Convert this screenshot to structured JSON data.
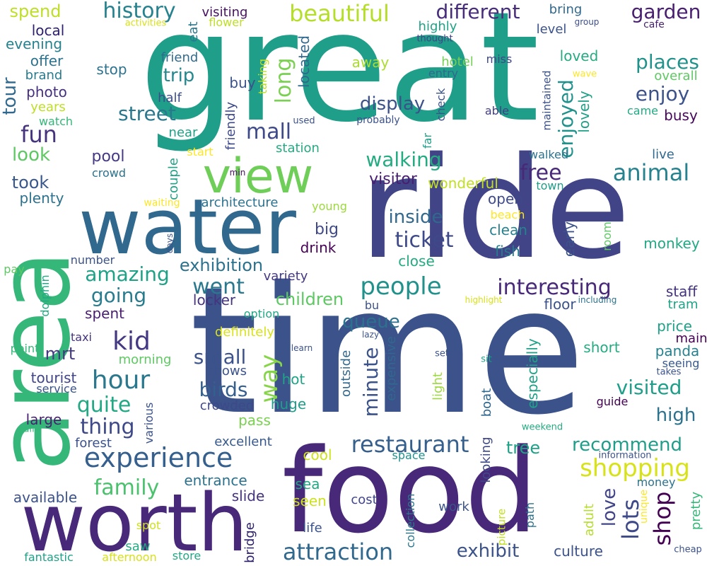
{
  "wordcloud": {
    "words": [
      {
        "text": "great",
        "color": "#1f9e89"
      },
      {
        "text": "time",
        "color": "#3b528b"
      },
      {
        "text": "ride",
        "color": "#414487"
      },
      {
        "text": "food",
        "color": "#482878"
      },
      {
        "text": "area",
        "color": "#35b779"
      },
      {
        "text": "water",
        "color": "#31688e"
      },
      {
        "text": "worth",
        "color": "#482878"
      },
      {
        "text": "view",
        "color": "#6ece58"
      },
      {
        "text": "beautiful",
        "color": "#b5de2b"
      },
      {
        "text": "history",
        "color": "#26828e"
      },
      {
        "text": "different",
        "color": "#472d7b"
      },
      {
        "text": "experience",
        "color": "#355f8d"
      },
      {
        "text": "restaurant",
        "color": "#355f8d"
      },
      {
        "text": "shopping",
        "color": "#d8e219"
      },
      {
        "text": "attraction",
        "color": "#31688e"
      },
      {
        "text": "interesting",
        "color": "#482878"
      },
      {
        "text": "people",
        "color": "#21918c"
      },
      {
        "text": "amazing",
        "color": "#1fa187"
      },
      {
        "text": "hour",
        "color": "#2a788e"
      },
      {
        "text": "ticket",
        "color": "#3e4989"
      },
      {
        "text": "children",
        "color": "#5ec962"
      },
      {
        "text": "exhibition",
        "color": "#2c728e"
      },
      {
        "text": "visited",
        "color": "#1f9e89"
      },
      {
        "text": "animal",
        "color": "#26828e"
      },
      {
        "text": "enjoyed",
        "color": "#21918c"
      },
      {
        "text": "shop",
        "color": "#440154"
      },
      {
        "text": "family",
        "color": "#4ac16d"
      },
      {
        "text": "exhibit",
        "color": "#3b528b"
      },
      {
        "text": "went",
        "color": "#2a788e"
      },
      {
        "text": "kid",
        "color": "#443983"
      },
      {
        "text": "quite",
        "color": "#22a884"
      },
      {
        "text": "thing",
        "color": "#3e4989"
      },
      {
        "text": "mall",
        "color": "#3e4989"
      },
      {
        "text": "fun",
        "color": "#46337e"
      },
      {
        "text": "street",
        "color": "#2a788e"
      },
      {
        "text": "walking",
        "color": "#25ab82"
      },
      {
        "text": "free",
        "color": "#482878"
      },
      {
        "text": "places",
        "color": "#21918c"
      },
      {
        "text": "garden",
        "color": "#481f70"
      },
      {
        "text": "enjoy",
        "color": "#3b528b"
      },
      {
        "text": "lots",
        "color": "#3e4989"
      },
      {
        "text": "long",
        "color": "#7ad151"
      },
      {
        "text": "way",
        "color": "#86d549"
      },
      {
        "text": "minute",
        "color": "#3b528b"
      },
      {
        "text": "recommend",
        "color": "#1f9e89"
      },
      {
        "text": "going",
        "color": "#287c8e"
      },
      {
        "text": "small",
        "color": "#3b528b"
      },
      {
        "text": "birds",
        "color": "#355f8d"
      },
      {
        "text": "queue",
        "color": "#2c728e"
      },
      {
        "text": "inside",
        "color": "#31688e"
      },
      {
        "text": "love",
        "color": "#414487"
      },
      {
        "text": "high",
        "color": "#2c728e"
      },
      {
        "text": "display",
        "color": "#3b528b"
      },
      {
        "text": "spend",
        "color": "#bddf26"
      },
      {
        "text": "local",
        "color": "#2d1e6e"
      },
      {
        "text": "evening",
        "color": "#26828e"
      },
      {
        "text": "offer",
        "color": "#2c728e"
      },
      {
        "text": "brand",
        "color": "#297b8e"
      },
      {
        "text": "photo",
        "color": "#46307e"
      },
      {
        "text": "years",
        "color": "#bddf26"
      },
      {
        "text": "watch",
        "color": "#35b779"
      },
      {
        "text": "tour",
        "color": "#31688e"
      },
      {
        "text": "look",
        "color": "#5ec962"
      },
      {
        "text": "took",
        "color": "#38588c"
      },
      {
        "text": "plenty",
        "color": "#2c728e"
      },
      {
        "text": "stop",
        "color": "#2c728e"
      },
      {
        "text": "trip",
        "color": "#23898e"
      },
      {
        "text": "half",
        "color": "#3d4d8a"
      },
      {
        "text": "friend",
        "color": "#2f6b8e"
      },
      {
        "text": "buy",
        "color": "#3b528b"
      },
      {
        "text": "taking",
        "color": "#bddf26"
      },
      {
        "text": "located",
        "color": "#31688e"
      },
      {
        "text": "eat",
        "color": "#2a788e"
      },
      {
        "text": "activities",
        "color": "#d8e219"
      },
      {
        "text": "visiting",
        "color": "#471063"
      },
      {
        "text": "flower",
        "color": "#bddf26"
      },
      {
        "text": "bring",
        "color": "#31688e"
      },
      {
        "text": "highly",
        "color": "#1fa187"
      },
      {
        "text": "thought",
        "color": "#414487"
      },
      {
        "text": "group",
        "color": "#3d4e8a"
      },
      {
        "text": "level",
        "color": "#3b528b"
      },
      {
        "text": "cafe",
        "color": "#481f70"
      },
      {
        "text": "away",
        "color": "#aadc32"
      },
      {
        "text": "hotel",
        "color": "#75d054"
      },
      {
        "text": "miss",
        "color": "#3f4788"
      },
      {
        "text": "entry",
        "color": "#31688e"
      },
      {
        "text": "loved",
        "color": "#25ab82"
      },
      {
        "text": "maintained",
        "color": "#3b528b"
      },
      {
        "text": "wave",
        "color": "#fde725"
      },
      {
        "text": "overall",
        "color": "#5ec962"
      },
      {
        "text": "check",
        "color": "#3b528b"
      },
      {
        "text": "able",
        "color": "#433e85"
      },
      {
        "text": "lovely",
        "color": "#1fa187"
      },
      {
        "text": "came",
        "color": "#22a884"
      },
      {
        "text": "busy",
        "color": "#46075a"
      },
      {
        "text": "probably",
        "color": "#3b528b"
      },
      {
        "text": "used",
        "color": "#3b528b"
      },
      {
        "text": "near",
        "color": "#1fa187"
      },
      {
        "text": "friendly",
        "color": "#3e4989"
      },
      {
        "text": "station",
        "color": "#25ab82"
      },
      {
        "text": "far",
        "color": "#1f9e89"
      },
      {
        "text": "pool",
        "color": "#443983"
      },
      {
        "text": "crowd",
        "color": "#2c728e"
      },
      {
        "text": "start",
        "color": "#fde725"
      },
      {
        "text": "min",
        "color": "#471063"
      },
      {
        "text": "couple",
        "color": "#20a386"
      },
      {
        "text": "walked",
        "color": "#2c728e"
      },
      {
        "text": "live",
        "color": "#31688e"
      },
      {
        "text": "town",
        "color": "#1f9e89"
      },
      {
        "text": "waiting",
        "color": "#fde725"
      },
      {
        "text": "architecture",
        "color": "#2c728e"
      },
      {
        "text": "visitor",
        "color": "#481f70"
      },
      {
        "text": "wonderful",
        "color": "#c2df23"
      },
      {
        "text": "open",
        "color": "#3e4989"
      },
      {
        "text": "young",
        "color": "#9bd93c"
      },
      {
        "text": "beach",
        "color": "#fde725"
      },
      {
        "text": "clean",
        "color": "#26828e"
      },
      {
        "text": "room",
        "color": "#5ec962"
      },
      {
        "text": "early",
        "color": "#3b528b"
      },
      {
        "text": "monkey",
        "color": "#22a884"
      },
      {
        "text": "days",
        "color": "#3b528b"
      },
      {
        "text": "big",
        "color": "#3e4989"
      },
      {
        "text": "drink",
        "color": "#440154"
      },
      {
        "text": "fish",
        "color": "#287c8e"
      },
      {
        "text": "number",
        "color": "#3b528b"
      },
      {
        "text": "close",
        "color": "#25ab82"
      },
      {
        "text": "pay",
        "color": "#5ec962"
      },
      {
        "text": "dolphin",
        "color": "#22a884"
      },
      {
        "text": "variety",
        "color": "#443983"
      },
      {
        "text": "staff",
        "color": "#46337e"
      },
      {
        "text": "locker",
        "color": "#46337e"
      },
      {
        "text": "floor",
        "color": "#3b528b"
      },
      {
        "text": "tram",
        "color": "#20a386"
      },
      {
        "text": "spent",
        "color": "#481f70"
      },
      {
        "text": "option",
        "color": "#22a884"
      },
      {
        "text": "bu",
        "color": "#3b528b"
      },
      {
        "text": "highlight",
        "color": "#d8e219"
      },
      {
        "text": "including",
        "color": "#2c728e"
      },
      {
        "text": "price",
        "color": "#1fa187"
      },
      {
        "text": "taxi",
        "color": "#46337e"
      },
      {
        "text": "definitely",
        "color": "#d8e219"
      },
      {
        "text": "lazy",
        "color": "#3b528b"
      },
      {
        "text": "main",
        "color": "#440154"
      },
      {
        "text": "point",
        "color": "#35b779"
      },
      {
        "text": "learn",
        "color": "#3b528b"
      },
      {
        "text": "outside",
        "color": "#31688e"
      },
      {
        "text": "expensive",
        "color": "#31688e"
      },
      {
        "text": "short",
        "color": "#25ab82"
      },
      {
        "text": "panda",
        "color": "#26828e"
      },
      {
        "text": "seeing",
        "color": "#38598c"
      },
      {
        "text": "mrt",
        "color": "#443983"
      },
      {
        "text": "morning",
        "color": "#5ec962"
      },
      {
        "text": "set",
        "color": "#3b528b"
      },
      {
        "text": "sit",
        "color": "#1fa187"
      },
      {
        "text": "takes",
        "color": "#3b528b"
      },
      {
        "text": "tourist",
        "color": "#414487"
      },
      {
        "text": "service",
        "color": "#3b528b"
      },
      {
        "text": "shows",
        "color": "#3b528b"
      },
      {
        "text": "hot",
        "color": "#20a386"
      },
      {
        "text": "light",
        "color": "#9bd93c"
      },
      {
        "text": "boat",
        "color": "#31688e"
      },
      {
        "text": "especially",
        "color": "#1fa187"
      },
      {
        "text": "guide",
        "color": "#440154"
      },
      {
        "text": "crowded",
        "color": "#3e4989"
      },
      {
        "text": "various",
        "color": "#3b528b"
      },
      {
        "text": "huge",
        "color": "#1f9e89"
      },
      {
        "text": "large",
        "color": "#481f70"
      },
      {
        "text": "pass",
        "color": "#7ad151"
      },
      {
        "text": "air",
        "color": "#35b779"
      },
      {
        "text": "weekend",
        "color": "#25ab82"
      },
      {
        "text": "forest",
        "color": "#3b528b"
      },
      {
        "text": "excellent",
        "color": "#38598c"
      },
      {
        "text": "looking",
        "color": "#3e4989"
      },
      {
        "text": "tree",
        "color": "#1fa187"
      },
      {
        "text": "cool",
        "color": "#cde11d"
      },
      {
        "text": "space",
        "color": "#21918c"
      },
      {
        "text": "information",
        "color": "#3b528b"
      },
      {
        "text": "available",
        "color": "#3b528b"
      },
      {
        "text": "entrance",
        "color": "#2c728e"
      },
      {
        "text": "slide",
        "color": "#46337e"
      },
      {
        "text": "sea",
        "color": "#22a884"
      },
      {
        "text": "seen",
        "color": "#cde11d"
      },
      {
        "text": "cost",
        "color": "#404688"
      },
      {
        "text": "work",
        "color": "#3b528b"
      },
      {
        "text": "path",
        "color": "#2c728e"
      },
      {
        "text": "adult",
        "color": "#b5de2b"
      },
      {
        "text": "unique",
        "color": "#fde725"
      },
      {
        "text": "pretty",
        "color": "#35b779"
      },
      {
        "text": "money",
        "color": "#2c728e"
      },
      {
        "text": "spot",
        "color": "#cde11d"
      },
      {
        "text": "saw",
        "color": "#25ab82"
      },
      {
        "text": "bridge",
        "color": "#2d1e6e"
      },
      {
        "text": "life",
        "color": "#3b528b"
      },
      {
        "text": "collection",
        "color": "#2a788e"
      },
      {
        "text": "picture",
        "color": "#c2df23"
      },
      {
        "text": "culture",
        "color": "#3b528b"
      },
      {
        "text": "cheap",
        "color": "#3b528b"
      },
      {
        "text": "fantastic",
        "color": "#1fa187"
      },
      {
        "text": "afternoon",
        "color": "#d8e219"
      },
      {
        "text": "store",
        "color": "#22a884"
      }
    ]
  }
}
